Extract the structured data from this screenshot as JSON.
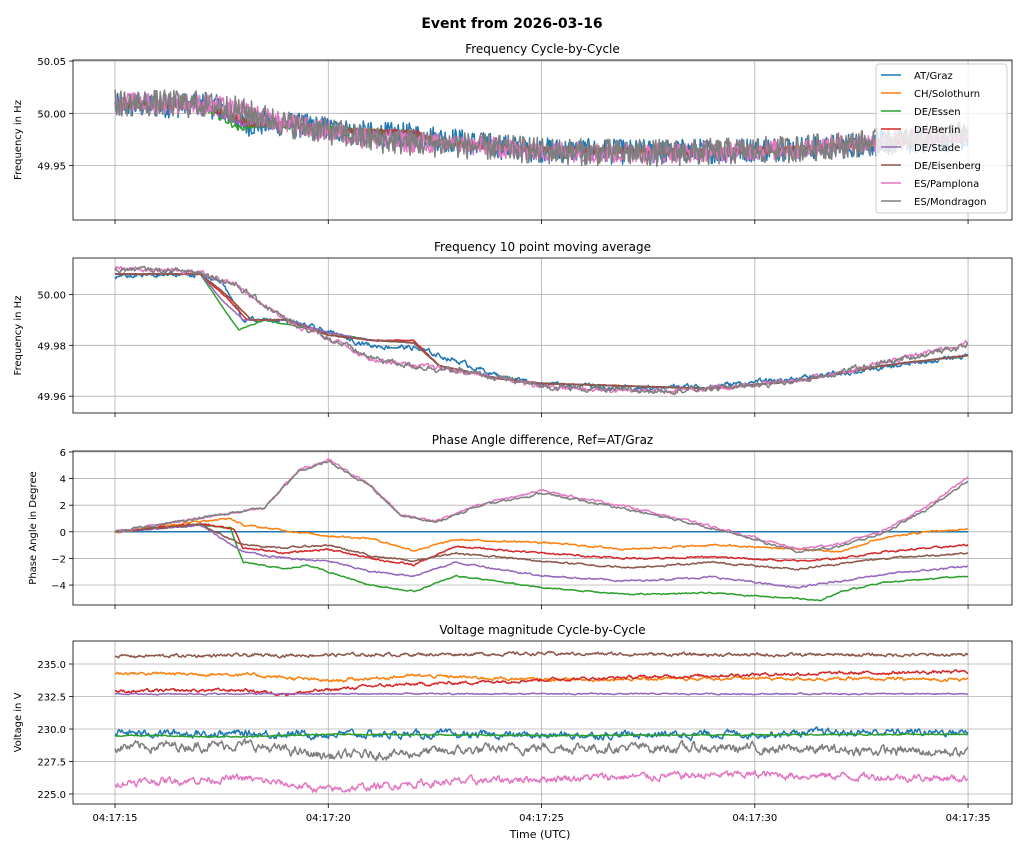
{
  "chart_data": {
    "type": "line",
    "title": "Event from 2026-03-16",
    "xlabel": "Time (UTC)",
    "xlim": [
      -0.985,
      21.03
    ],
    "xticks": [
      0,
      5,
      10,
      15,
      20
    ],
    "xtick_labels": [
      "04:17:15",
      "04:17:20",
      "04:17:25",
      "04:17:30",
      "04:17:35"
    ],
    "series_names": [
      "AT/Graz",
      "CH/Solothurn",
      "DE/Essen",
      "DE/Berlin",
      "DE/Stade",
      "DE/Eisenberg",
      "ES/Pamplona",
      "ES/Mondragon"
    ],
    "colors": [
      "#1f77b4",
      "#ff7f0e",
      "#2ca02c",
      "#d62728",
      "#9467bd",
      "#8c564b",
      "#e377c2",
      "#7f7f7f"
    ],
    "legend": {
      "placement": "top-right",
      "panel": 0
    },
    "panels": [
      {
        "title": "Frequency Cycle-by-Cycle",
        "ylabel": "Frequency in Hz",
        "ylim": [
          49.898,
          50.051
        ],
        "yticks": [
          49.95,
          50.0,
          50.05
        ],
        "ytick_labels": [
          "49.95",
          "50.00",
          "50.05"
        ],
        "source": "freq",
        "noise": [
          0.012,
          0.003,
          0.003,
          0.003,
          0.003,
          0.003,
          0.01,
          0.013
        ]
      },
      {
        "title": "Frequency 10 point moving average",
        "ylabel": "Frequency in Hz",
        "ylim": [
          49.9534,
          50.0143
        ],
        "yticks": [
          49.96,
          49.98,
          50.0
        ],
        "ytick_labels": [
          "49.96",
          "49.98",
          "50.00"
        ],
        "source": "freq",
        "noise": [
          0.0012,
          0.0002,
          0.0002,
          0.0002,
          0.0002,
          0.0002,
          0.0012,
          0.0014
        ]
      },
      {
        "title": "Phase Angle difference, Ref=AT/Graz",
        "ylabel": "Phase Angle in Degree",
        "ylim": [
          -5.5,
          6.07
        ],
        "yticks": [
          -4,
          -2,
          0,
          2,
          4,
          6
        ],
        "ytick_labels": [
          "−4",
          "−2",
          "0",
          "2",
          "4",
          "6"
        ],
        "source": "phase",
        "noise": [
          0,
          0.08,
          0.06,
          0.08,
          0.08,
          0.08,
          0.1,
          0.1
        ]
      },
      {
        "title": "Voltage magnitude Cycle-by-Cycle",
        "ylabel": "Voltage in V",
        "ylim": [
          224.23,
          236.77
        ],
        "yticks": [
          225,
          227.5,
          230,
          232.5,
          235
        ],
        "ytick_labels": [
          "225.0",
          "227.5",
          "230.0",
          "232.5",
          "235.0"
        ],
        "source": "volt",
        "noise": [
          0.35,
          0.15,
          0.05,
          0.15,
          0.06,
          0.15,
          0.35,
          0.45
        ]
      }
    ],
    "freq": [
      [
        [
          0,
          50.007
        ],
        [
          2,
          50.008
        ],
        [
          2.5,
          50.005
        ],
        [
          3,
          49.99
        ],
        [
          4,
          49.99
        ],
        [
          5,
          49.985
        ],
        [
          6,
          49.98
        ],
        [
          7,
          49.979
        ],
        [
          8,
          49.974
        ],
        [
          9,
          49.968
        ],
        [
          10,
          49.965
        ],
        [
          12,
          49.963
        ],
        [
          14,
          49.964
        ],
        [
          16,
          49.967
        ],
        [
          18,
          49.971
        ],
        [
          20,
          49.976
        ]
      ],
      [
        [
          0,
          50.008
        ],
        [
          2,
          50.008
        ],
        [
          2.6,
          50.0
        ],
        [
          3.2,
          49.99
        ],
        [
          4,
          49.99
        ],
        [
          5,
          49.984
        ],
        [
          6,
          49.982
        ],
        [
          7,
          49.981
        ],
        [
          7.6,
          49.972
        ],
        [
          9,
          49.967
        ],
        [
          10,
          49.965
        ],
        [
          12,
          49.964
        ],
        [
          14,
          49.963
        ],
        [
          16,
          49.966
        ],
        [
          18,
          49.972
        ],
        [
          20,
          49.976
        ]
      ],
      [
        [
          0,
          50.008
        ],
        [
          2,
          50.008
        ],
        [
          2.4,
          49.998
        ],
        [
          2.9,
          49.986
        ],
        [
          3.5,
          49.99
        ],
        [
          5,
          49.985
        ],
        [
          6,
          49.982
        ],
        [
          7,
          49.981
        ],
        [
          7.6,
          49.972
        ],
        [
          9,
          49.967
        ],
        [
          10,
          49.965
        ],
        [
          12,
          49.964
        ],
        [
          14,
          49.963
        ],
        [
          16,
          49.966
        ],
        [
          18,
          49.972
        ],
        [
          20,
          49.976
        ]
      ],
      [
        [
          0,
          50.008
        ],
        [
          2,
          50.008
        ],
        [
          2.6,
          49.999
        ],
        [
          3.1,
          49.99
        ],
        [
          4,
          49.99
        ],
        [
          5,
          49.984
        ],
        [
          6,
          49.982
        ],
        [
          7,
          49.982
        ],
        [
          7.6,
          49.972
        ],
        [
          9,
          49.967
        ],
        [
          10,
          49.965
        ],
        [
          12,
          49.964
        ],
        [
          14,
          49.963
        ],
        [
          16,
          49.966
        ],
        [
          18,
          49.972
        ],
        [
          20,
          49.976
        ]
      ],
      [
        [
          0,
          50.008
        ],
        [
          2,
          50.008
        ],
        [
          2.5,
          49.998
        ],
        [
          3,
          49.99
        ],
        [
          4,
          49.99
        ],
        [
          5,
          49.985
        ],
        [
          6,
          49.982
        ],
        [
          7,
          49.981
        ],
        [
          7.6,
          49.972
        ],
        [
          9,
          49.967
        ],
        [
          10,
          49.965
        ],
        [
          12,
          49.964
        ],
        [
          14,
          49.963
        ],
        [
          16,
          49.966
        ],
        [
          18,
          49.972
        ],
        [
          20,
          49.976
        ]
      ],
      [
        [
          0,
          50.008
        ],
        [
          2,
          50.008
        ],
        [
          2.6,
          50.0
        ],
        [
          3.2,
          49.99
        ],
        [
          4,
          49.99
        ],
        [
          5,
          49.984
        ],
        [
          6,
          49.982
        ],
        [
          7,
          49.981
        ],
        [
          7.6,
          49.972
        ],
        [
          9,
          49.967
        ],
        [
          10,
          49.965
        ],
        [
          12,
          49.964
        ],
        [
          14,
          49.963
        ],
        [
          16,
          49.966
        ],
        [
          18,
          49.972
        ],
        [
          20,
          49.976
        ]
      ],
      [
        [
          0,
          50.01
        ],
        [
          2,
          50.009
        ],
        [
          2.8,
          50.004
        ],
        [
          4,
          49.99
        ],
        [
          5,
          49.983
        ],
        [
          6,
          49.975
        ],
        [
          7,
          49.972
        ],
        [
          8,
          49.97
        ],
        [
          10,
          49.964
        ],
        [
          12,
          49.962
        ],
        [
          14,
          49.963
        ],
        [
          16,
          49.966
        ],
        [
          18,
          49.973
        ],
        [
          20,
          49.981
        ]
      ],
      [
        [
          0,
          50.01
        ],
        [
          2,
          50.009
        ],
        [
          2.8,
          50.004
        ],
        [
          4,
          49.99
        ],
        [
          5,
          49.983
        ],
        [
          6,
          49.975
        ],
        [
          7,
          49.972
        ],
        [
          8,
          49.97
        ],
        [
          10,
          49.964
        ],
        [
          12,
          49.962
        ],
        [
          14,
          49.963
        ],
        [
          16,
          49.966
        ],
        [
          18,
          49.973
        ],
        [
          20,
          49.98
        ]
      ]
    ],
    "phase": [
      [
        [
          0,
          0
        ],
        [
          20,
          0
        ]
      ],
      [
        [
          0,
          0
        ],
        [
          2,
          0.8
        ],
        [
          2.7,
          1.0
        ],
        [
          3,
          0.5
        ],
        [
          5,
          -0.3
        ],
        [
          6,
          -0.5
        ],
        [
          7,
          -1.4
        ],
        [
          8,
          -0.6
        ],
        [
          10,
          -0.8
        ],
        [
          12,
          -1.3
        ],
        [
          14,
          -1.0
        ],
        [
          16,
          -1.3
        ],
        [
          17,
          -1.5
        ],
        [
          18,
          -0.5
        ],
        [
          19,
          0
        ],
        [
          20,
          0.2
        ]
      ],
      [
        [
          0,
          0
        ],
        [
          2,
          0.5
        ],
        [
          2.7,
          0.3
        ],
        [
          3,
          -2.3
        ],
        [
          4,
          -2.8
        ],
        [
          4.5,
          -2.5
        ],
        [
          5,
          -3
        ],
        [
          6,
          -4
        ],
        [
          7,
          -4.5
        ],
        [
          8,
          -3.3
        ],
        [
          10,
          -4.2
        ],
        [
          12,
          -4.7
        ],
        [
          14,
          -4.6
        ],
        [
          16,
          -5
        ],
        [
          16.5,
          -5.2
        ],
        [
          17,
          -4.5
        ],
        [
          18,
          -3.8
        ],
        [
          20,
          -3.3
        ]
      ],
      [
        [
          0,
          0
        ],
        [
          2,
          0.6
        ],
        [
          2.8,
          0.2
        ],
        [
          3,
          -1.2
        ],
        [
          4,
          -1.6
        ],
        [
          5,
          -1.3
        ],
        [
          6,
          -2.0
        ],
        [
          7,
          -2.5
        ],
        [
          8,
          -1.1
        ],
        [
          10,
          -1.6
        ],
        [
          12,
          -2.0
        ],
        [
          14,
          -1.9
        ],
        [
          16,
          -2.2
        ],
        [
          17,
          -2
        ],
        [
          18,
          -1.5
        ],
        [
          20,
          -1.0
        ]
      ],
      [
        [
          0,
          0
        ],
        [
          2,
          0.5
        ],
        [
          3,
          -1.5
        ],
        [
          4,
          -2
        ],
        [
          5,
          -2.2
        ],
        [
          6,
          -3
        ],
        [
          7,
          -3.3
        ],
        [
          8,
          -2.3
        ],
        [
          10,
          -3.3
        ],
        [
          12,
          -3.7
        ],
        [
          14,
          -3.4
        ],
        [
          16,
          -4.2
        ],
        [
          17,
          -3.7
        ],
        [
          18,
          -3.2
        ],
        [
          20,
          -2.6
        ]
      ],
      [
        [
          0,
          0
        ],
        [
          2,
          0.6
        ],
        [
          3,
          -1
        ],
        [
          4,
          -1.2
        ],
        [
          5,
          -1
        ],
        [
          6,
          -1.8
        ],
        [
          7,
          -2.2
        ],
        [
          8,
          -1.6
        ],
        [
          10,
          -2.2
        ],
        [
          12,
          -2.7
        ],
        [
          14,
          -2.3
        ],
        [
          16,
          -2.8
        ],
        [
          17,
          -2.4
        ],
        [
          18,
          -2.0
        ],
        [
          20,
          -1.6
        ]
      ],
      [
        [
          0,
          0
        ],
        [
          2.5,
          1.3
        ],
        [
          3.5,
          1.8
        ],
        [
          4.3,
          4.6
        ],
        [
          5,
          5.4
        ],
        [
          6,
          3.5
        ],
        [
          6.7,
          1.3
        ],
        [
          7.5,
          0.8
        ],
        [
          8.5,
          2
        ],
        [
          10,
          3.1
        ],
        [
          12,
          1.9
        ],
        [
          14,
          0.4
        ],
        [
          16,
          -1.3
        ],
        [
          17,
          -0.9
        ],
        [
          18,
          0.1
        ],
        [
          19,
          1.8
        ],
        [
          20,
          4.1
        ]
      ],
      [
        [
          0,
          0
        ],
        [
          2.5,
          1.3
        ],
        [
          3.5,
          1.8
        ],
        [
          4.3,
          4.5
        ],
        [
          5,
          5.3
        ],
        [
          6,
          3.4
        ],
        [
          6.7,
          1.2
        ],
        [
          7.5,
          0.7
        ],
        [
          8.5,
          1.9
        ],
        [
          10,
          2.9
        ],
        [
          12,
          1.7
        ],
        [
          14,
          0.3
        ],
        [
          16,
          -1.5
        ],
        [
          17,
          -1.1
        ],
        [
          18,
          -0.1
        ],
        [
          19,
          1.6
        ],
        [
          20,
          3.8
        ]
      ]
    ],
    "volt": [
      [
        [
          0,
          229.7
        ],
        [
          10,
          229.5
        ],
        [
          20,
          229.8
        ]
      ],
      [
        [
          0,
          234.3
        ],
        [
          3,
          234.2
        ],
        [
          5,
          233.7
        ],
        [
          7,
          234.1
        ],
        [
          10,
          233.8
        ],
        [
          15,
          233.9
        ],
        [
          20,
          233.8
        ]
      ],
      [
        [
          0,
          229.5
        ],
        [
          3,
          229.4
        ],
        [
          5,
          229.6
        ],
        [
          10,
          229.5
        ],
        [
          20,
          229.6
        ]
      ],
      [
        [
          0,
          232.9
        ],
        [
          3,
          233.0
        ],
        [
          4,
          232.7
        ],
        [
          6,
          233.3
        ],
        [
          10,
          233.8
        ],
        [
          15,
          234.2
        ],
        [
          20,
          234.4
        ]
      ],
      [
        [
          0,
          232.7
        ],
        [
          10,
          232.7
        ],
        [
          20,
          232.7
        ]
      ],
      [
        [
          0,
          235.6
        ],
        [
          5,
          235.7
        ],
        [
          10,
          235.8
        ],
        [
          15,
          235.7
        ],
        [
          20,
          235.7
        ]
      ],
      [
        [
          0,
          225.9
        ],
        [
          3,
          226.2
        ],
        [
          5,
          225.3
        ],
        [
          7,
          225.8
        ],
        [
          10,
          226.2
        ],
        [
          15,
          226.5
        ],
        [
          20,
          226.2
        ]
      ],
      [
        [
          0,
          228.6
        ],
        [
          3,
          228.8
        ],
        [
          5,
          227.9
        ],
        [
          8,
          228.3
        ],
        [
          10,
          228.6
        ],
        [
          15,
          228.5
        ],
        [
          20,
          228.2
        ]
      ]
    ]
  }
}
